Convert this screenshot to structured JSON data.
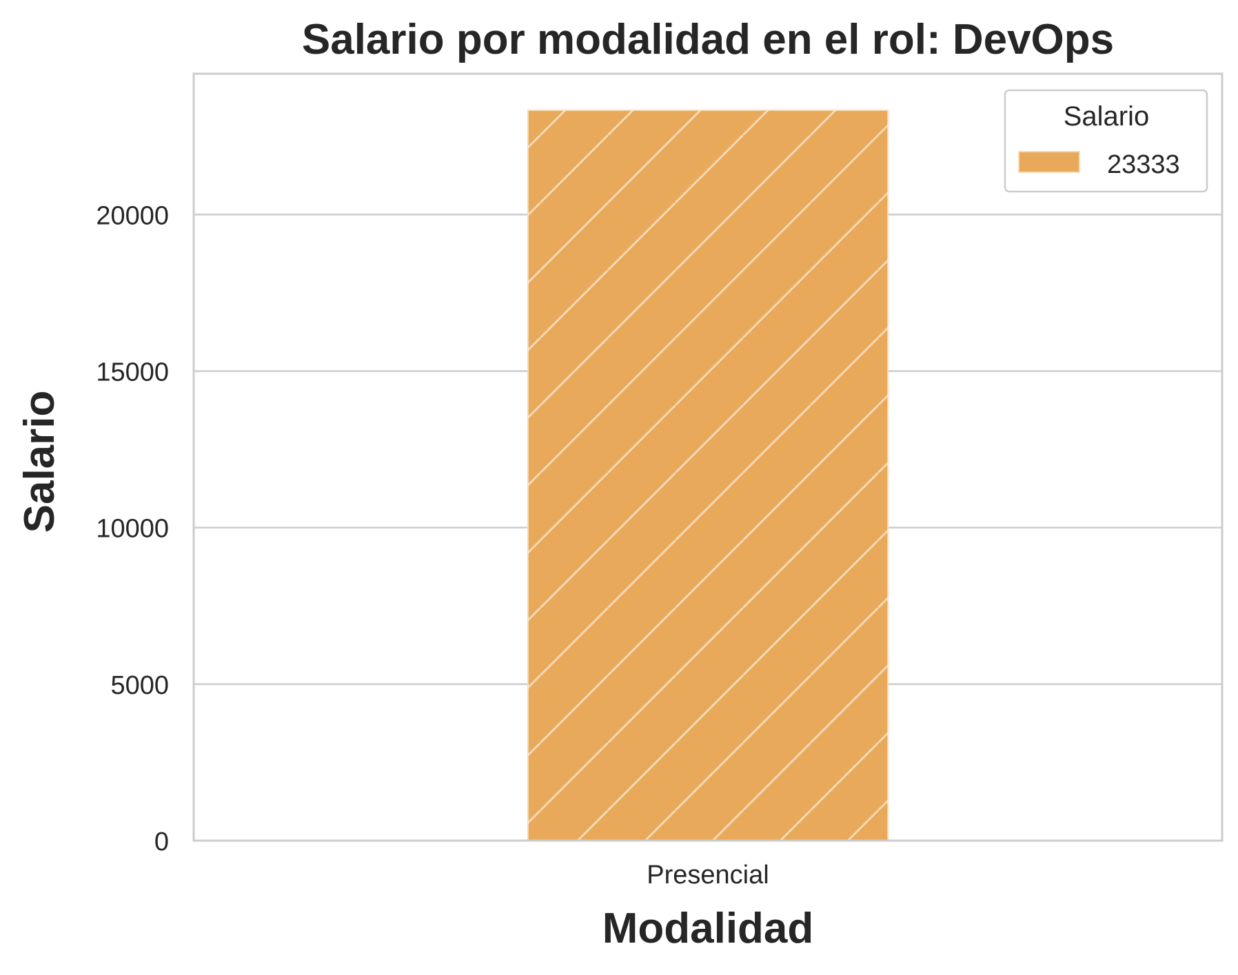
{
  "chart_data": {
    "type": "bar",
    "title": "Salario por modalidad en el rol: DevOps",
    "xlabel": "Modalidad",
    "ylabel": "Salario",
    "categories": [
      "Presencial"
    ],
    "series": [
      {
        "name": "23333",
        "values": [
          23333
        ],
        "color": "#e8a95a",
        "hatch": "diagonal"
      }
    ],
    "ylim": [
      0,
      24500
    ],
    "yticks": [
      0,
      5000,
      10000,
      15000,
      20000
    ],
    "grid": true,
    "legend": {
      "title": "Salario",
      "placement": "top-right"
    }
  },
  "colors": {
    "bar": "#e8a95a",
    "grid": "#cccccc",
    "axes_border": "#cccccc",
    "text": "#262626"
  }
}
